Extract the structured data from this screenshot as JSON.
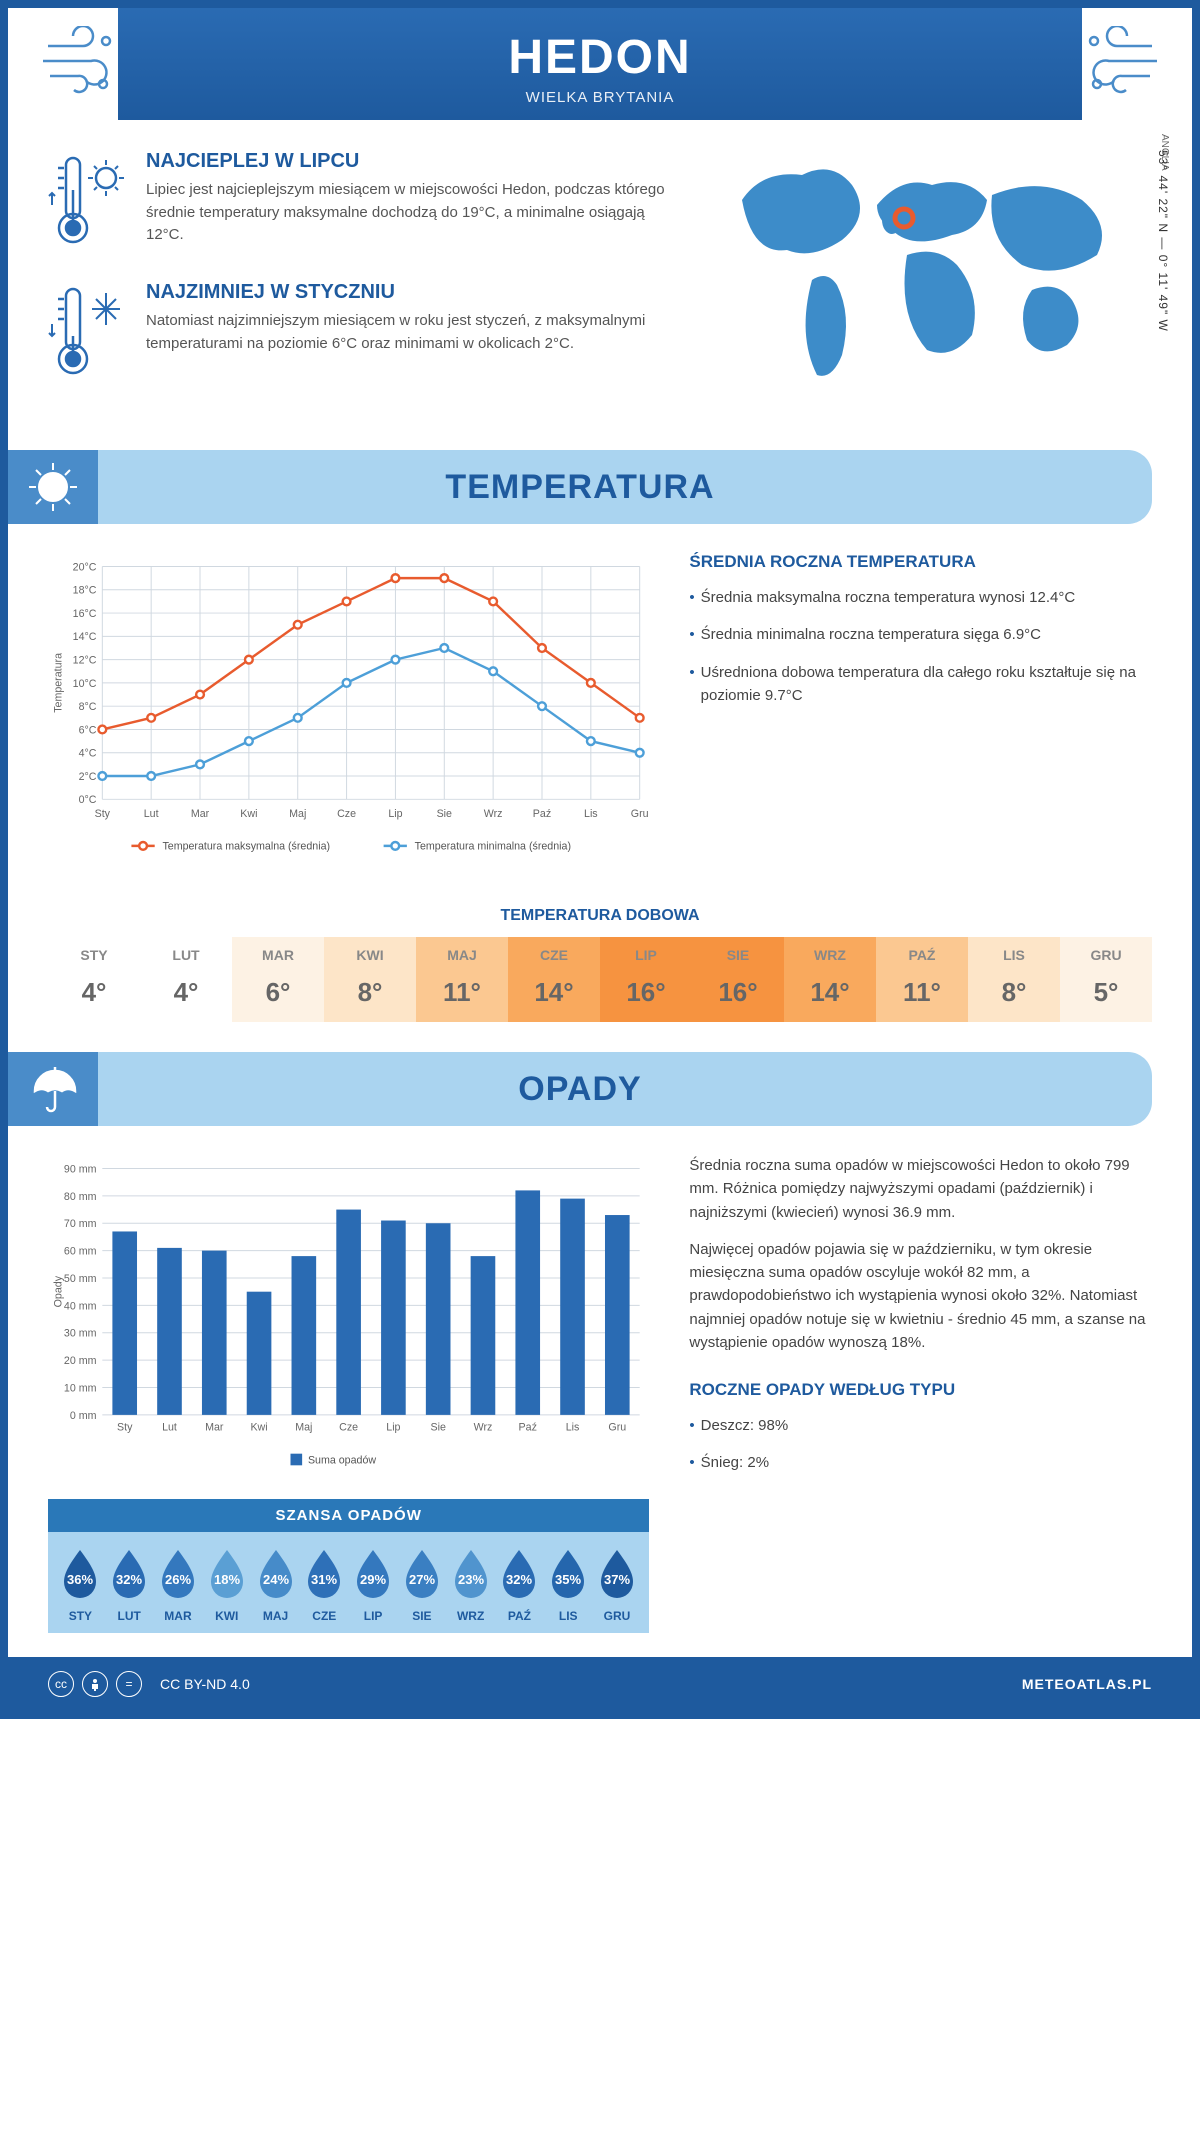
{
  "colors": {
    "primary": "#1e5a9e",
    "primaryLight": "#2a6bb3",
    "accent": "#4a8cc9",
    "paleBlue": "#aad4f0",
    "orange": "#e85b2e",
    "blue": "#4d9fd8",
    "grid": "#d0d8e0",
    "text": "#444"
  },
  "header": {
    "city": "HEDON",
    "country": "WIELKA BRYTANIA"
  },
  "coords": "53° 44' 22\" N — 0° 11' 49\" W",
  "region": "ANGLIA",
  "facts": {
    "hot": {
      "title": "NAJCIEPLEJ W LIPCU",
      "body": "Lipiec jest najcieplejszym miesiącem w miejscowości Hedon, podczas którego średnie temperatury maksymalne dochodzą do 19°C, a minimalne osiągają 12°C."
    },
    "cold": {
      "title": "NAJZIMNIEJ W STYCZNIU",
      "body": "Natomiast najzimniejszym miesiącem w roku jest styczeń, z maksymalnymi temperaturami na poziomie 6°C oraz minimami w okolicach 2°C."
    }
  },
  "sections": {
    "temperature": "TEMPERATURA",
    "precipitation": "OPADY"
  },
  "months": [
    "Sty",
    "Lut",
    "Mar",
    "Kwi",
    "Maj",
    "Cze",
    "Lip",
    "Sie",
    "Wrz",
    "Paź",
    "Lis",
    "Gru"
  ],
  "monthsUpper": [
    "STY",
    "LUT",
    "MAR",
    "KWI",
    "MAJ",
    "CZE",
    "LIP",
    "SIE",
    "WRZ",
    "PAŹ",
    "LIS",
    "GRU"
  ],
  "tempChart": {
    "type": "line",
    "ylabel": "Temperatura",
    "ylim": [
      0,
      20
    ],
    "ystep": 2,
    "yformat": "°C",
    "series": [
      {
        "name": "Temperatura maksymalna (średnia)",
        "color": "#e85b2e",
        "values": [
          6,
          7,
          9,
          12,
          15,
          17,
          19,
          19,
          17,
          13,
          10,
          7
        ]
      },
      {
        "name": "Temperatura minimalna (średnia)",
        "color": "#4d9fd8",
        "values": [
          2,
          2,
          3,
          5,
          7,
          10,
          12,
          13,
          11,
          8,
          5,
          4
        ]
      }
    ],
    "label_fontsize": 11
  },
  "annualTemp": {
    "heading": "ŚREDNIA ROCZNA TEMPERATURA",
    "bullets": [
      "Średnia maksymalna roczna temperatura wynosi 12.4°C",
      "Średnia minimalna roczna temperatura sięga 6.9°C",
      "Uśredniona dobowa temperatura dla całego roku kształtuje się na poziomie 9.7°C"
    ]
  },
  "dailyTemp": {
    "title": "TEMPERATURA DOBOWA",
    "values": [
      4,
      4,
      6,
      8,
      11,
      14,
      16,
      16,
      14,
      11,
      8,
      5
    ],
    "colors": [
      "#ffffff",
      "#ffffff",
      "#fdf2e4",
      "#fde5c8",
      "#fbc891",
      "#f9a95d",
      "#f69340",
      "#f69340",
      "#f9a95d",
      "#fbc891",
      "#fde5c8",
      "#fdf2e4"
    ]
  },
  "precipText": {
    "p1": "Średnia roczna suma opadów w miejscowości Hedon to około 799 mm. Różnica pomiędzy najwyższymi opadami (październik) i najniższymi (kwiecień) wynosi 36.9 mm.",
    "p2": "Najwięcej opadów pojawia się w październiku, w tym okresie miesięczna suma opadów oscyluje wokół 82 mm, a prawdopodobieństwo ich wystąpienia wynosi około 32%. Natomiast najmniej opadów notuje się w kwietniu - średnio 45 mm, a szanse na wystąpienie opadów wynoszą 18%."
  },
  "precipChart": {
    "type": "bar",
    "ylabel": "Opady",
    "ylim": [
      0,
      90
    ],
    "ystep": 10,
    "yformat": " mm",
    "bar_color": "#2a6bb3",
    "bar_width": 0.55,
    "values": [
      67,
      61,
      60,
      45,
      58,
      75,
      71,
      70,
      58,
      82,
      79,
      73
    ],
    "legend": "Suma opadów",
    "label_fontsize": 11
  },
  "chance": {
    "heading": "SZANSA OPADÓW",
    "values": [
      36,
      32,
      26,
      18,
      24,
      31,
      29,
      27,
      23,
      32,
      35,
      37
    ],
    "colors": [
      "#1e5a9e",
      "#2a6bb3",
      "#3478be",
      "#5a9fd4",
      "#468bc9",
      "#2e70b8",
      "#3478be",
      "#3a7fc2",
      "#5094ce",
      "#2a6bb3",
      "#2566ad",
      "#1e5a9e"
    ]
  },
  "byType": {
    "heading": "ROCZNE OPADY WEDŁUG TYPU",
    "items": [
      "Deszcz: 98%",
      "Śnieg: 2%"
    ]
  },
  "footer": {
    "license": "CC BY-ND 4.0",
    "site": "METEOATLAS.PL"
  }
}
